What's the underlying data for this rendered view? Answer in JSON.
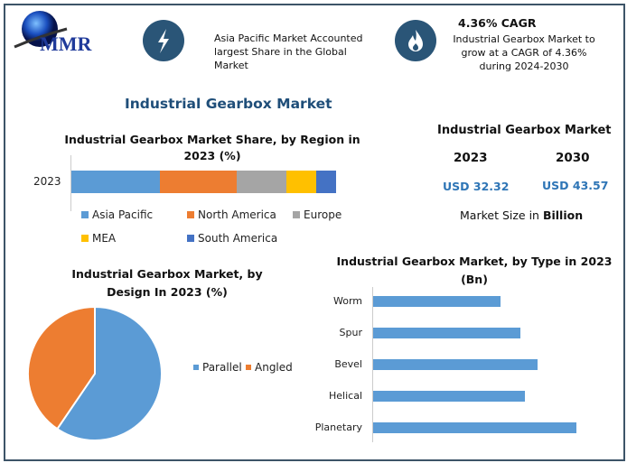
{
  "brand": {
    "logo_text": "MMR"
  },
  "header": {
    "highlight_1": "Asia Pacific Market Accounted largest Share in the Global Market",
    "cagr_title": "4.36% CAGR",
    "cagr_text": "Industrial Gearbox Market to grow at a CAGR of 4.36% during 2024-2030",
    "icons": [
      "lightning-icon",
      "flame-icon"
    ]
  },
  "main_title": "Industrial Gearbox Market",
  "market_size": {
    "title": "Industrial Gearbox Market",
    "year_1": "2023",
    "value_1": "USD 32.32",
    "year_2": "2030",
    "value_2": "USD 43.57",
    "note_prefix": "Market Size in ",
    "note_bold": "Billion"
  },
  "colors": {
    "frame": "#3d5468",
    "icon_circle": "#2a5577",
    "value_text": "#2e75b6"
  },
  "chart_data": [
    {
      "type": "bar",
      "stacked": true,
      "orientation": "horizontal",
      "title": "Industrial Gearbox Market Share, by Region in 2023 (%)",
      "categories": [
        "2023"
      ],
      "series": [
        {
          "name": "Asia Pacific",
          "values": [
            33.5
          ],
          "color": "#5b9bd5"
        },
        {
          "name": "North America",
          "values": [
            29
          ],
          "color": "#ed7d31"
        },
        {
          "name": "Europe",
          "values": [
            18.8
          ],
          "color": "#a5a5a5"
        },
        {
          "name": "MEA",
          "values": [
            11.2
          ],
          "color": "#ffc000"
        },
        {
          "name": "South America",
          "values": [
            7.5
          ],
          "color": "#4472c4"
        }
      ],
      "legend": "bottom"
    },
    {
      "type": "pie",
      "title": "Industrial Gearbox Market, by Design In 2023 (%)",
      "slices": [
        {
          "name": "Parallel",
          "value": 59.5,
          "color": "#5b9bd5"
        },
        {
          "name": "Angled",
          "value": 40.5,
          "color": "#ed7d31"
        }
      ],
      "legend": "right"
    },
    {
      "type": "bar",
      "orientation": "horizontal",
      "title": "Industrial Gearbox Market, by Type in 2023 (Bn)",
      "categories": [
        "Worm",
        "Spur",
        "Bevel",
        "Helical",
        "Planetary"
      ],
      "values": [
        5.2,
        6.0,
        6.7,
        6.2,
        8.3
      ],
      "color": "#5b9bd5",
      "xlim": [
        0,
        9.5
      ]
    }
  ]
}
